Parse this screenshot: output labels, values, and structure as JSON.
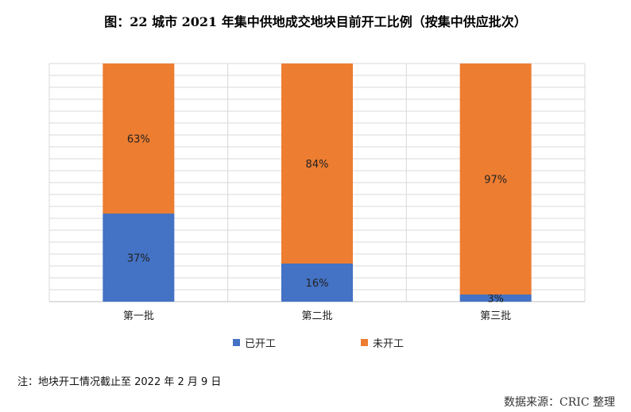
{
  "title": "图：22 城市 2021 年集中供地成交地块目前开工比例（按集中供应批次）",
  "note": "注：地块开工情况截止至 2022 年 2 月 9 日",
  "source": "数据来源：CRIC 整理",
  "colors": {
    "started": "#4472c4",
    "not_started": "#ed7d31",
    "grid": "#d9d9d9"
  },
  "chart_data": {
    "type": "bar",
    "stacked": true,
    "categories": [
      "第一批",
      "第二批",
      "第三批"
    ],
    "series": [
      {
        "name": "已开工",
        "values": [
          37,
          16,
          3
        ],
        "labels": [
          "37%",
          "16%",
          "3%"
        ]
      },
      {
        "name": "未开工",
        "values": [
          63,
          84,
          97
        ],
        "labels": [
          "63%",
          "84%",
          "97%"
        ]
      }
    ],
    "ylim": [
      0,
      100
    ],
    "grid": true,
    "legend": "bottom"
  }
}
